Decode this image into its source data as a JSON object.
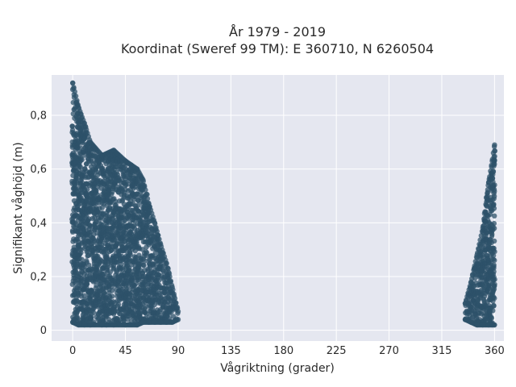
{
  "chart_data": {
    "type": "scatter",
    "title_lines": [
      "År 1979 - 2019",
      "Koordinat (Sweref 99 TM): E 360710, N 6260504"
    ],
    "xlabel": "Vågriktning (grader)",
    "ylabel": "Signifikant våghöjd (m)",
    "xlim": [
      -18,
      368
    ],
    "ylim": [
      -0.04,
      0.95
    ],
    "xticks": [
      0,
      45,
      90,
      135,
      180,
      225,
      270,
      315,
      360
    ],
    "xtick_labels": [
      "0",
      "45",
      "90",
      "135",
      "180",
      "225",
      "270",
      "315",
      "360"
    ],
    "yticks": [
      0,
      0.2,
      0.4,
      0.6,
      0.8
    ],
    "ytick_labels": [
      "0",
      "0,2",
      "0,4",
      "0,6",
      "0,8"
    ],
    "grid": true,
    "colors": {
      "marker": "#2e5169",
      "background": "#e5e7f0",
      "grid": "#ffffff"
    },
    "envelope": [
      {
        "x": 0,
        "y_min": 0.03,
        "y_max": 0.92
      },
      {
        "x": 5,
        "y_min": 0.02,
        "y_max": 0.83
      },
      {
        "x": 10,
        "y_min": 0.02,
        "y_max": 0.77
      },
      {
        "x": 15,
        "y_min": 0.02,
        "y_max": 0.7
      },
      {
        "x": 25,
        "y_min": 0.02,
        "y_max": 0.65
      },
      {
        "x": 35,
        "y_min": 0.02,
        "y_max": 0.67
      },
      {
        "x": 45,
        "y_min": 0.02,
        "y_max": 0.63
      },
      {
        "x": 55,
        "y_min": 0.02,
        "y_max": 0.6
      },
      {
        "x": 60,
        "y_min": 0.03,
        "y_max": 0.56
      },
      {
        "x": 65,
        "y_min": 0.03,
        "y_max": 0.47
      },
      {
        "x": 70,
        "y_min": 0.03,
        "y_max": 0.4
      },
      {
        "x": 75,
        "y_min": 0.03,
        "y_max": 0.32
      },
      {
        "x": 80,
        "y_min": 0.03,
        "y_max": 0.25
      },
      {
        "x": 85,
        "y_min": 0.03,
        "y_max": 0.16
      },
      {
        "x": 90,
        "y_min": 0.04,
        "y_max": 0.07
      },
      {
        "x": 335,
        "y_min": 0.04,
        "y_max": 0.1
      },
      {
        "x": 340,
        "y_min": 0.03,
        "y_max": 0.18
      },
      {
        "x": 345,
        "y_min": 0.02,
        "y_max": 0.28
      },
      {
        "x": 350,
        "y_min": 0.02,
        "y_max": 0.38
      },
      {
        "x": 355,
        "y_min": 0.02,
        "y_max": 0.55
      },
      {
        "x": 358,
        "y_min": 0.02,
        "y_max": 0.63
      },
      {
        "x": 360,
        "y_min": 0.02,
        "y_max": 0.69
      }
    ]
  }
}
